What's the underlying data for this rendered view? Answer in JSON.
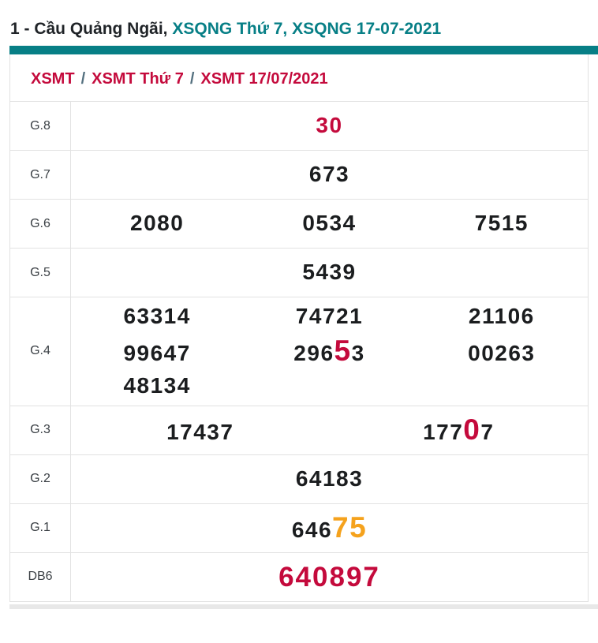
{
  "header": {
    "title_dark": "1 - Cầu Quảng Ngãi,",
    "title_teal": "XSQNG Thứ 7, XSQNG 17-07-2021"
  },
  "breadcrumb": {
    "separator": "/",
    "items": [
      "XSMT",
      "XSMT Thứ 7",
      "XSMT 17/07/2021"
    ]
  },
  "colors": {
    "teal": "#077f86",
    "crimson": "#c40a3c",
    "orange": "#f5a21d",
    "text": "#1b1d1f",
    "label": "#3b4045",
    "border": "#e2e2e2",
    "separator": "#54707f"
  },
  "table": {
    "rows": [
      {
        "label": "G.8",
        "lines": [
          [
            [
              [
                "30",
                "r"
              ]
            ]
          ]
        ]
      },
      {
        "label": "G.7",
        "lines": [
          [
            [
              [
                "673",
                "n"
              ]
            ]
          ]
        ]
      },
      {
        "label": "G.6",
        "lines": [
          [
            [
              [
                "2080",
                "n"
              ]
            ],
            [
              [
                "0534",
                "n"
              ]
            ],
            [
              [
                "7515",
                "n"
              ]
            ]
          ]
        ]
      },
      {
        "label": "G.5",
        "lines": [
          [
            [
              [
                "5439",
                "n"
              ]
            ]
          ]
        ]
      },
      {
        "label": "G.4",
        "lines": [
          [
            [
              [
                "63314",
                "n"
              ]
            ],
            [
              [
                "74721",
                "n"
              ]
            ],
            [
              [
                "21106",
                "n"
              ]
            ]
          ],
          [
            [
              [
                "99647",
                "n"
              ]
            ],
            [
              [
                "296",
                "n"
              ],
              [
                "5",
                "R"
              ],
              [
                "3",
                "n"
              ]
            ],
            [
              [
                "00263",
                "n"
              ]
            ]
          ],
          [
            [
              [
                "48134",
                "n"
              ]
            ],
            [],
            []
          ]
        ]
      },
      {
        "label": "G.3",
        "lines": [
          [
            [
              [
                "17437",
                "n"
              ]
            ],
            [
              [
                "177",
                "n"
              ],
              [
                "0",
                "R"
              ],
              [
                "7",
                "n"
              ]
            ]
          ]
        ]
      },
      {
        "label": "G.2",
        "lines": [
          [
            [
              [
                "64183",
                "n"
              ]
            ]
          ]
        ]
      },
      {
        "label": "G.1",
        "lines": [
          [
            [
              [
                "646",
                "n"
              ],
              [
                "75",
                "O"
              ]
            ]
          ]
        ]
      },
      {
        "label": "DB6",
        "lines": [
          [
            [
              [
                "640897",
                "D"
              ]
            ]
          ]
        ]
      }
    ]
  }
}
